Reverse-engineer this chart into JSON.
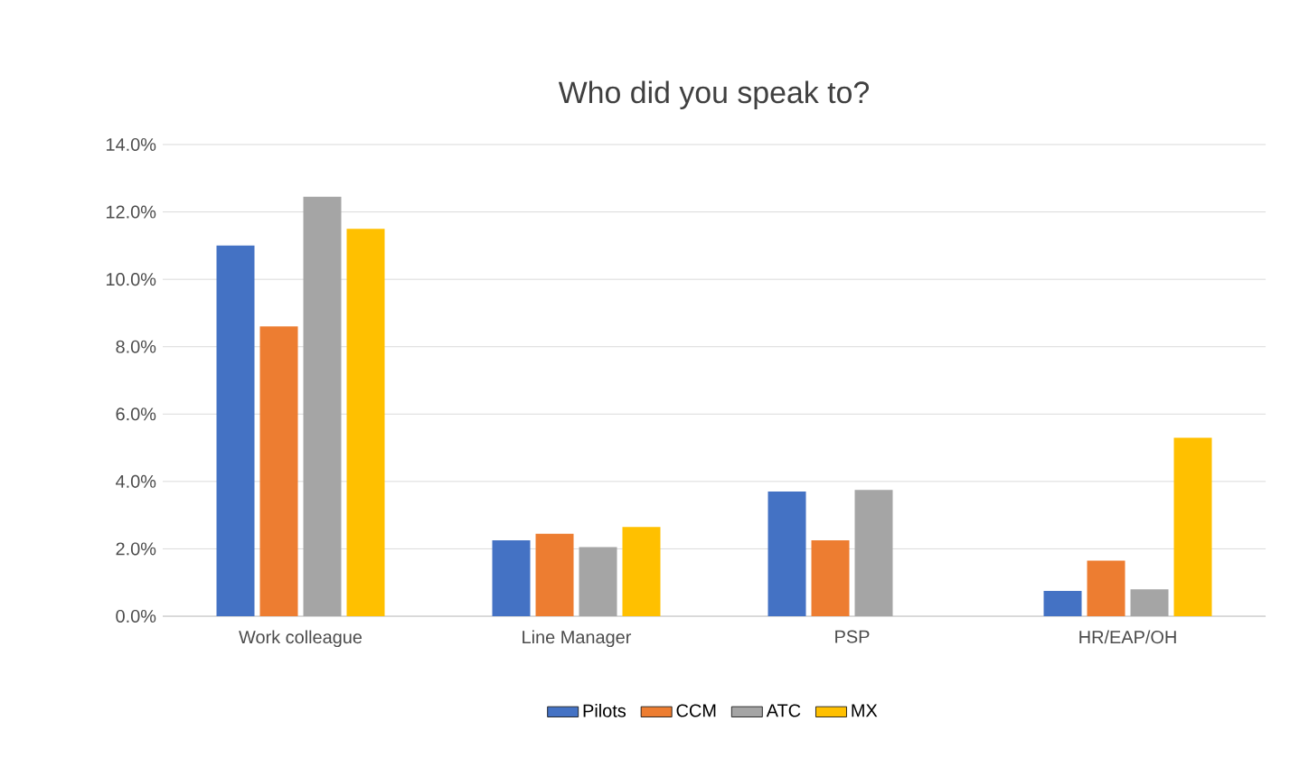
{
  "chart_data": {
    "type": "bar",
    "title": "Who did you speak to?",
    "categories": [
      "Work colleague",
      "Line Manager",
      "PSP",
      "HR/EAP/OH"
    ],
    "series": [
      {
        "name": "Pilots",
        "color": "#4472c4",
        "values": [
          11.0,
          2.25,
          3.7,
          0.75
        ]
      },
      {
        "name": "CCM",
        "color": "#ed7d31",
        "values": [
          8.6,
          2.45,
          2.25,
          1.65
        ]
      },
      {
        "name": "ATC",
        "color": "#a5a5a5",
        "values": [
          12.45,
          2.05,
          3.75,
          0.8
        ]
      },
      {
        "name": "MX",
        "color": "#ffc000",
        "values": [
          11.5,
          2.65,
          null,
          5.3
        ]
      }
    ],
    "ylim": [
      0,
      14
    ],
    "yticks": [
      {
        "value": 0,
        "label": "0.0%"
      },
      {
        "value": 2,
        "label": "2.0%"
      },
      {
        "value": 4,
        "label": "4.0%"
      },
      {
        "value": 6,
        "label": "6.0%"
      },
      {
        "value": 8,
        "label": "8.0%"
      },
      {
        "value": 10,
        "label": "10.0%"
      },
      {
        "value": 12,
        "label": "12.0%"
      },
      {
        "value": 14,
        "label": "14.0%"
      }
    ],
    "grid": "y",
    "legend": "bottom"
  }
}
